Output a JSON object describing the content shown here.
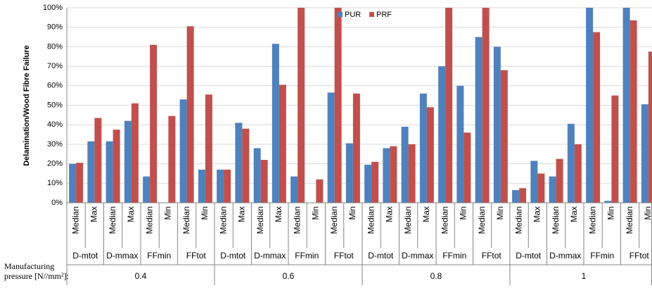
{
  "chart_data": {
    "type": "bar",
    "y_axis_label": "Delamination/Wood Fibre Failure",
    "x_axis_label_lines": [
      "Manufacturing",
      "pressure [N//mm²]:"
    ],
    "categories": [
      "Median",
      "Max",
      "Median",
      "Max",
      "Median",
      "Min",
      "Median",
      "Min",
      "Median",
      "Max",
      "Median",
      "Max",
      "Median",
      "Min",
      "Median",
      "Min",
      "Median",
      "Max",
      "Median",
      "Max",
      "Median",
      "Min",
      "Median",
      "Min",
      "Median",
      "Max",
      "Median",
      "Max",
      "Median",
      "Min",
      "Median",
      "Min"
    ],
    "group_labels": [
      "D-mtot",
      "D-mmax",
      "FFmin",
      "FFtot",
      "D-mtot",
      "D-mmax",
      "FFmin",
      "FFtot",
      "D-mtot",
      "D-mmax",
      "FFmin",
      "FFtot",
      "D-mtot",
      "D-mmax",
      "FFmin",
      "FFtot"
    ],
    "pressure_labels": [
      "0.4",
      "0.6",
      "0.8",
      "1"
    ],
    "series": [
      {
        "name": "PUR",
        "color": "#4f81bd",
        "values": [
          20,
          31.5,
          31.5,
          42,
          13.5,
          0,
          53,
          17,
          17,
          41,
          28,
          81.5,
          13.5,
          0,
          56.5,
          30.5,
          19.5,
          28,
          39,
          56,
          70,
          60,
          85,
          80,
          6.5,
          21.5,
          13.5,
          40.5,
          100,
          1,
          100,
          50.5
        ]
      },
      {
        "name": "PRF",
        "color": "#c0504d",
        "values": [
          20.5,
          43.5,
          37.5,
          51,
          81,
          44.5,
          90.5,
          55.5,
          17,
          38,
          22,
          60.5,
          100,
          12,
          100,
          56,
          21,
          29,
          30,
          49,
          100,
          36,
          100,
          68,
          7.5,
          15,
          22.5,
          30,
          87.5,
          55,
          93.5,
          77.5
        ]
      }
    ],
    "ylim": [
      0,
      100
    ],
    "yticks": [
      {
        "value": 0,
        "label": "0%"
      },
      {
        "value": 10,
        "label": "10%"
      },
      {
        "value": 20,
        "label": "20%"
      },
      {
        "value": 30,
        "label": "30%"
      },
      {
        "value": 40,
        "label": "40%"
      },
      {
        "value": 50,
        "label": "50%"
      },
      {
        "value": 60,
        "label": "60%"
      },
      {
        "value": 70,
        "label": "70%"
      },
      {
        "value": 80,
        "label": "80%"
      },
      {
        "value": 90,
        "label": "90%"
      },
      {
        "value": 100,
        "label": "100%"
      }
    ],
    "grid": true,
    "legend": "top"
  }
}
